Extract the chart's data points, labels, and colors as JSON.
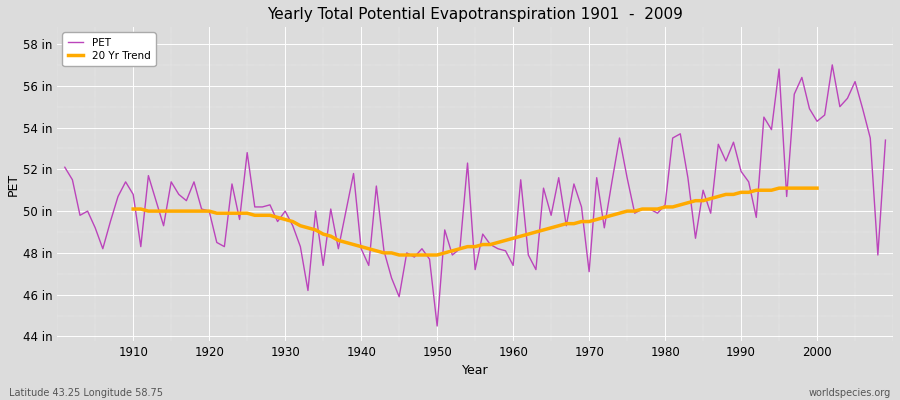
{
  "title": "Yearly Total Potential Evapotranspiration 1901  -  2009",
  "xlabel": "Year",
  "ylabel": "PET",
  "bottom_left_label": "Latitude 43.25 Longitude 58.75",
  "bottom_right_label": "worldspecies.org",
  "ylim": [
    43.8,
    58.8
  ],
  "yticks": [
    44,
    46,
    48,
    50,
    52,
    54,
    56,
    58
  ],
  "ytick_labels": [
    "44 in",
    "46 in",
    "48 in",
    "50 in",
    "52 in",
    "54 in",
    "56 in",
    "58 in"
  ],
  "xticks": [
    1910,
    1920,
    1930,
    1940,
    1950,
    1960,
    1970,
    1980,
    1990,
    2000
  ],
  "background_color": "#dcdcdc",
  "plot_bg_color": "#dcdcdc",
  "pet_color": "#bb44bb",
  "trend_color": "#ffaa00",
  "legend_pet": "PET",
  "legend_trend": "20 Yr Trend",
  "years": [
    1901,
    1902,
    1903,
    1904,
    1905,
    1906,
    1907,
    1908,
    1909,
    1910,
    1911,
    1912,
    1913,
    1914,
    1915,
    1916,
    1917,
    1918,
    1919,
    1920,
    1921,
    1922,
    1923,
    1924,
    1925,
    1926,
    1927,
    1928,
    1929,
    1930,
    1931,
    1932,
    1933,
    1934,
    1935,
    1936,
    1937,
    1938,
    1939,
    1940,
    1941,
    1942,
    1943,
    1944,
    1945,
    1946,
    1947,
    1948,
    1949,
    1950,
    1951,
    1952,
    1953,
    1954,
    1955,
    1956,
    1957,
    1958,
    1959,
    1960,
    1961,
    1962,
    1963,
    1964,
    1965,
    1966,
    1967,
    1968,
    1969,
    1970,
    1971,
    1972,
    1973,
    1974,
    1975,
    1976,
    1977,
    1978,
    1979,
    1980,
    1981,
    1982,
    1983,
    1984,
    1985,
    1986,
    1987,
    1988,
    1989,
    1990,
    1991,
    1992,
    1993,
    1994,
    1995,
    1996,
    1997,
    1998,
    1999,
    2000,
    2001,
    2002,
    2003,
    2004,
    2005,
    2006,
    2007,
    2008,
    2009
  ],
  "pet_values": [
    52.1,
    51.5,
    49.8,
    50.0,
    49.2,
    48.2,
    49.5,
    50.7,
    51.4,
    50.8,
    48.3,
    51.7,
    50.5,
    49.3,
    51.4,
    50.8,
    50.5,
    51.4,
    50.1,
    50.0,
    48.5,
    48.3,
    51.3,
    49.6,
    52.8,
    50.2,
    50.2,
    50.3,
    49.5,
    50.0,
    49.3,
    48.3,
    46.2,
    50.0,
    47.4,
    50.1,
    48.2,
    50.0,
    51.8,
    48.2,
    47.4,
    51.2,
    48.1,
    46.8,
    45.9,
    48.0,
    47.8,
    48.2,
    47.7,
    44.5,
    49.1,
    47.9,
    48.2,
    52.3,
    47.2,
    48.9,
    48.4,
    48.2,
    48.1,
    47.4,
    51.5,
    47.9,
    47.2,
    51.1,
    49.8,
    51.6,
    49.3,
    51.3,
    50.2,
    47.1,
    51.6,
    49.2,
    51.4,
    53.5,
    51.6,
    49.9,
    50.1,
    50.1,
    49.9,
    50.3,
    53.5,
    53.7,
    51.6,
    48.7,
    51.0,
    49.9,
    53.2,
    52.4,
    53.3,
    51.9,
    51.4,
    49.7,
    54.5,
    53.9,
    56.8,
    50.7,
    55.6,
    56.4,
    54.9,
    54.3,
    54.6,
    57.0,
    55.0,
    55.4,
    56.2,
    54.9,
    53.5,
    47.9,
    53.4
  ],
  "trend_years": [
    1910,
    1911,
    1912,
    1913,
    1914,
    1915,
    1916,
    1917,
    1918,
    1919,
    1920,
    1921,
    1922,
    1923,
    1924,
    1925,
    1926,
    1927,
    1928,
    1929,
    1930,
    1931,
    1932,
    1933,
    1934,
    1935,
    1936,
    1937,
    1938,
    1939,
    1940,
    1941,
    1942,
    1943,
    1944,
    1945,
    1946,
    1947,
    1948,
    1949,
    1950,
    1951,
    1952,
    1953,
    1954,
    1955,
    1956,
    1957,
    1958,
    1959,
    1960,
    1961,
    1962,
    1963,
    1964,
    1965,
    1966,
    1967,
    1968,
    1969,
    1970,
    1971,
    1972,
    1973,
    1974,
    1975,
    1976,
    1977,
    1978,
    1979,
    1980,
    1981,
    1982,
    1983,
    1984,
    1985,
    1986,
    1987,
    1988,
    1989,
    1990,
    1991,
    1992,
    1993,
    1994,
    1995,
    1996,
    1997,
    1998,
    1999,
    2000
  ],
  "trend_values": [
    50.1,
    50.1,
    50.0,
    50.0,
    50.0,
    50.0,
    50.0,
    50.0,
    50.0,
    50.0,
    50.0,
    49.9,
    49.9,
    49.9,
    49.9,
    49.9,
    49.8,
    49.8,
    49.8,
    49.7,
    49.6,
    49.5,
    49.3,
    49.2,
    49.1,
    48.9,
    48.8,
    48.6,
    48.5,
    48.4,
    48.3,
    48.2,
    48.1,
    48.0,
    48.0,
    47.9,
    47.9,
    47.9,
    47.9,
    47.9,
    47.9,
    48.0,
    48.1,
    48.2,
    48.3,
    48.3,
    48.4,
    48.4,
    48.5,
    48.6,
    48.7,
    48.8,
    48.9,
    49.0,
    49.1,
    49.2,
    49.3,
    49.4,
    49.4,
    49.5,
    49.5,
    49.6,
    49.7,
    49.8,
    49.9,
    50.0,
    50.0,
    50.1,
    50.1,
    50.1,
    50.2,
    50.2,
    50.3,
    50.4,
    50.5,
    50.5,
    50.6,
    50.7,
    50.8,
    50.8,
    50.9,
    50.9,
    51.0,
    51.0,
    51.0,
    51.1,
    51.1,
    51.1,
    51.1,
    51.1,
    51.1
  ]
}
